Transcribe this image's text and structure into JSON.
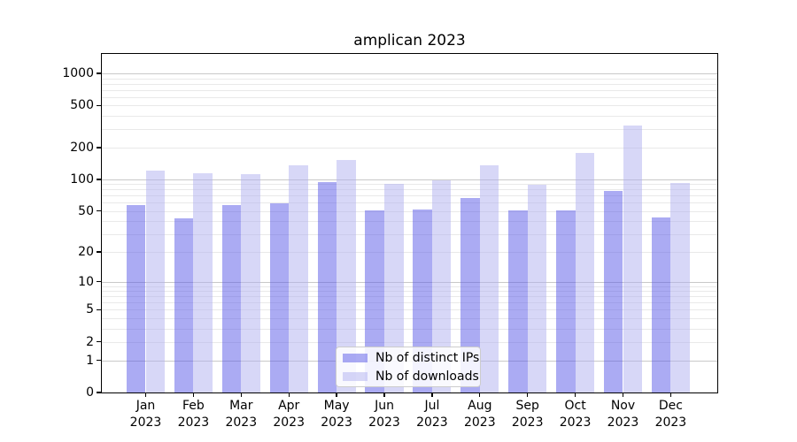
{
  "chart_data": {
    "type": "bar",
    "title": "amplican 2023",
    "categories": [
      "Jan 2023",
      "Feb 2023",
      "Mar 2023",
      "Apr 2023",
      "May 2023",
      "Jun 2023",
      "Jul 2023",
      "Aug 2023",
      "Sep 2023",
      "Oct 2023",
      "Nov 2023",
      "Dec 2023"
    ],
    "series": [
      {
        "name": "Nb of distinct IPs",
        "values": [
          57,
          42,
          57,
          59,
          95,
          51,
          52,
          67,
          51,
          51,
          77,
          43
        ]
      },
      {
        "name": "Nb of downloads",
        "values": [
          120,
          114,
          112,
          136,
          152,
          91,
          98,
          135,
          89,
          178,
          320,
          93
        ]
      }
    ],
    "xlabel": "",
    "ylabel": "",
    "yscale": "log1p",
    "ylim": [
      0,
      1500
    ],
    "yticks": [
      1000,
      500,
      200,
      100,
      50,
      20,
      10,
      5,
      2,
      1,
      0
    ],
    "grid": true,
    "legend_position": "lower center"
  },
  "colors": {
    "ips_bar": "rgba(88,88,232,0.5)",
    "downloads_bar": "rgba(176,176,240,0.5)",
    "ips_bar_flat": "#ABABF3",
    "downloads_bar_flat": "#D7D7F9",
    "grid_major": "#c9c9c9",
    "grid_minor": "#e9e9e9",
    "axis": "#000000",
    "background": "#ffffff"
  }
}
